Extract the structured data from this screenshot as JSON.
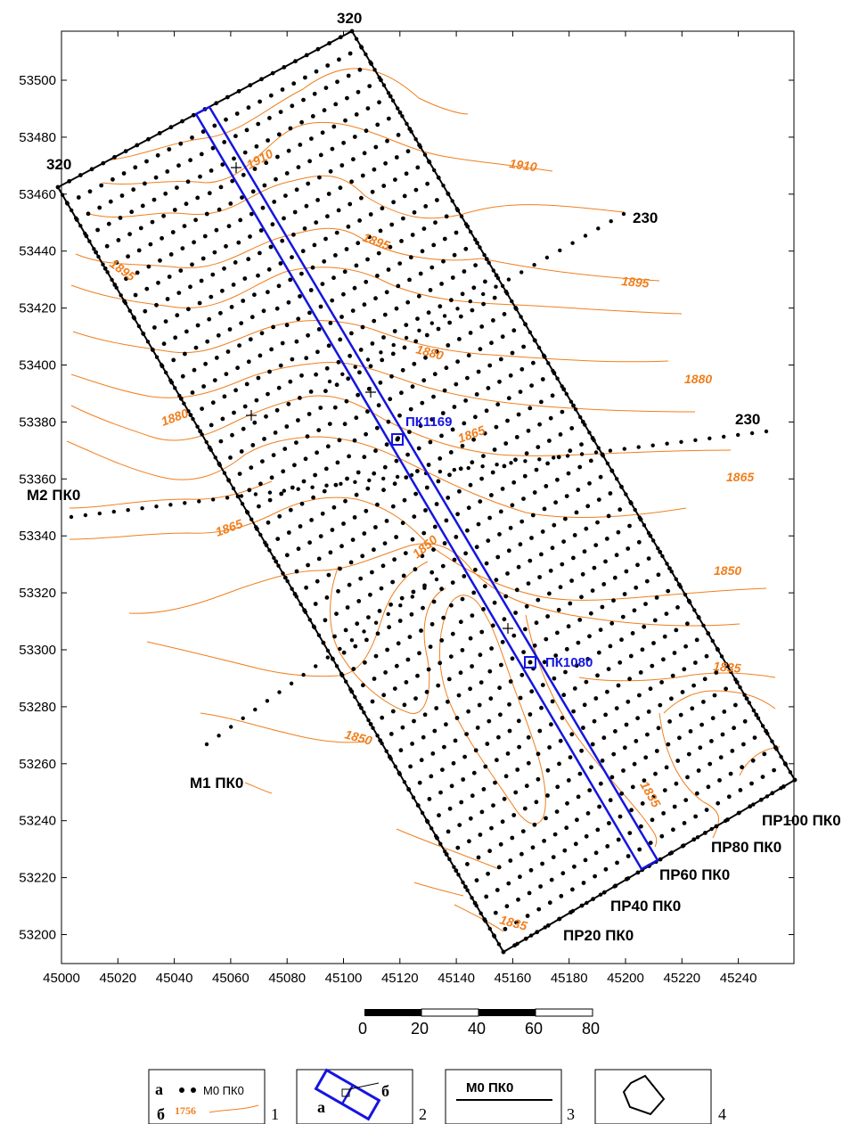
{
  "x_axis": {
    "ticks": [
      "45000",
      "45020",
      "45040",
      "45060",
      "45080",
      "45100",
      "45120",
      "45140",
      "45160",
      "45180",
      "45200",
      "45220",
      "45240"
    ]
  },
  "y_axis": {
    "ticks": [
      "53500",
      "53480",
      "53460",
      "53440",
      "53420",
      "53400",
      "53380",
      "53360",
      "53340",
      "53320",
      "53300",
      "53280",
      "53260",
      "53240",
      "53220",
      "53200"
    ]
  },
  "corners": {
    "top": "320",
    "left": "320",
    "right_upper": "230",
    "right_lower": "230"
  },
  "lines": {
    "m2": "M2 ПК0",
    "m1": "M1 ПК0",
    "pr20": "ПР20 ПК0",
    "pr40": "ПР40 ПК0",
    "pr60": "ПР60 ПК0",
    "pr80": "ПР80 ПК0",
    "pr100": "ПР100 ПК0"
  },
  "pickets": {
    "pk1169": "ПК1169",
    "pk1080": "ПК1080"
  },
  "contour_labels": [
    "1910",
    "1910",
    "1895",
    "1895",
    "1895",
    "1880",
    "1880",
    "1880",
    "1865",
    "1865",
    "1865",
    "1850",
    "1850",
    "1850",
    "1835",
    "1835",
    "1835"
  ],
  "scale_bar": {
    "labels": [
      "0",
      "20",
      "40",
      "60",
      "80"
    ]
  },
  "legend": {
    "item1": {
      "a": "а",
      "b": "б",
      "line_name": "M0 ПК0",
      "contour_value": "1756",
      "number": "1"
    },
    "item2": {
      "a": "а",
      "b": "б",
      "number": "2"
    },
    "item3": {
      "line_name": "M0 ПК0",
      "number": "3"
    },
    "item4": {
      "number": "4"
    }
  },
  "colors": {
    "contour": "#f07f1e",
    "profile": "#1515e0",
    "outline": "#000000"
  }
}
